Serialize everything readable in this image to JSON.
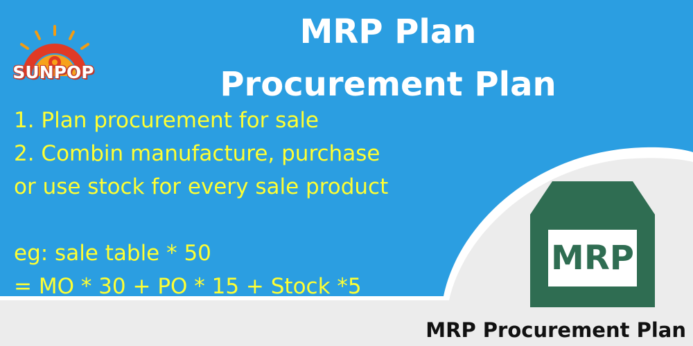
{
  "logo": {
    "text": "SUNPOP"
  },
  "title": {
    "line1": "MRP Plan",
    "line2": "Procurement Plan"
  },
  "features": {
    "line1": "1.  Plan procurement for sale",
    "line2": "2.  Combin manufacture, purchase",
    "line3": "or  use stock for  every sale product",
    "line4": "eg: sale table * 50",
    "line5": "= MO * 30 + PO * 15 + Stock *5"
  },
  "icon": {
    "name": "mrp-box-icon",
    "label": "MRP"
  },
  "footer": {
    "text": "MRP Procurement Plan"
  },
  "colors": {
    "background": "#2b9ee1",
    "title": "#ffffff",
    "feature_text": "#ffff33",
    "box": "#2f6d52",
    "curve": "#eeeeee"
  }
}
